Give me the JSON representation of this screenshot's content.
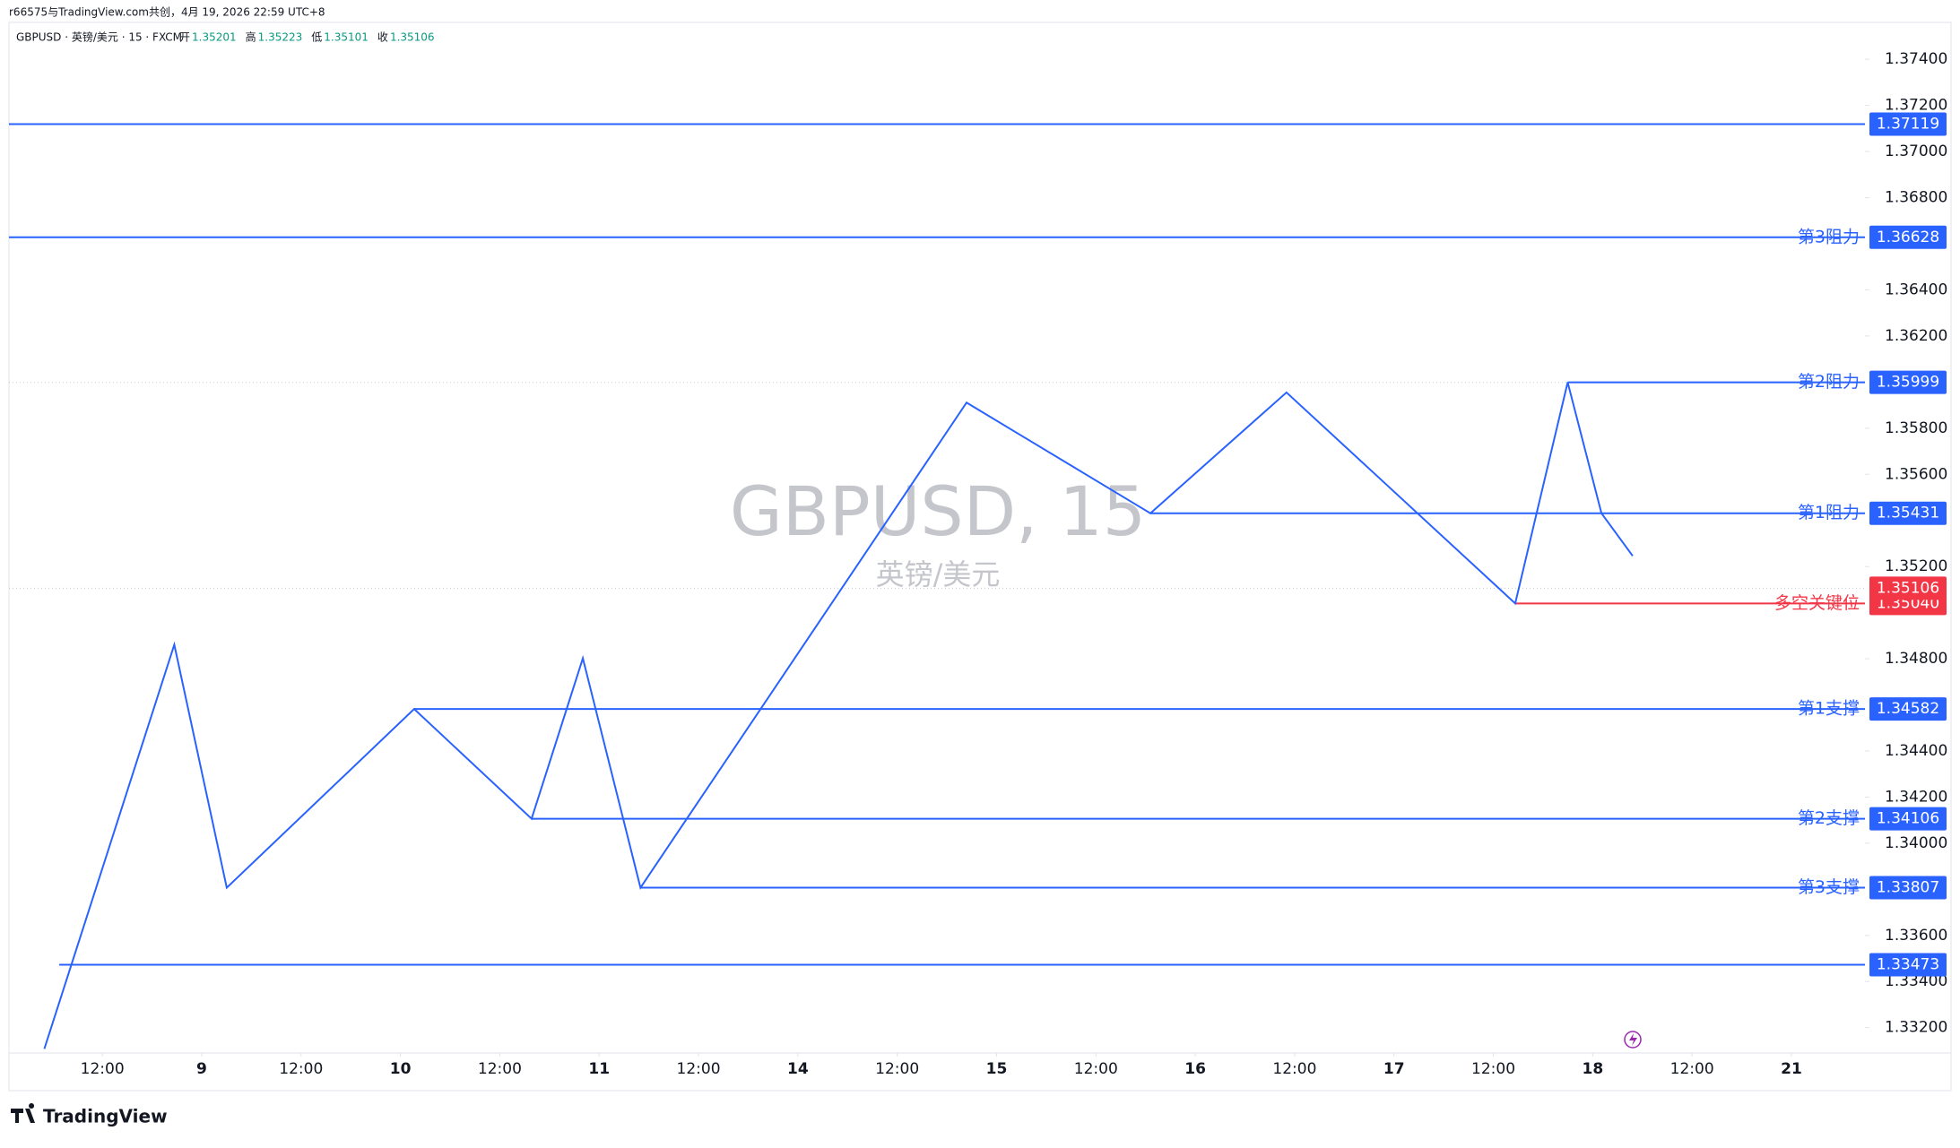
{
  "header": {
    "credit": "r66575与TradingView.com共创，4月 19, 2026 22:59 UTC+8",
    "symbol": "GBPUSD · 英镑/美元 · 15 · FXCM",
    "ohlc": [
      {
        "label": "开",
        "value": 1.35201
      },
      {
        "label": "高",
        "value": 1.35223
      },
      {
        "label": "低",
        "value": 1.35101
      },
      {
        "label": "收",
        "value": 1.35106
      }
    ]
  },
  "chart_data": {
    "type": "line",
    "title": "GBPUSD, 15",
    "subtitle": "英镑/美元",
    "x": [
      0.208,
      0.862,
      1.126,
      2.069,
      2.66,
      2.918,
      3.208,
      4.849,
      5.774,
      6.459,
      7.61,
      7.874,
      8.044,
      8.201
    ],
    "values": [
      1.33108,
      1.34861,
      1.33807,
      1.34582,
      1.34106,
      1.34802,
      1.33807,
      1.35911,
      1.35431,
      1.35955,
      1.3504,
      1.35999,
      1.35431,
      1.35246
    ],
    "color": "#2962ff",
    "levels": [
      {
        "price": 1.37119,
        "start": 0.03,
        "color": "#2962ff"
      },
      {
        "name": "第3阻力",
        "price": 1.36628,
        "start": 0.03,
        "color": "#2962ff"
      },
      {
        "name": "第2阻力",
        "price": 1.35999,
        "start": 7.874,
        "color": "#2962ff"
      },
      {
        "name": "第1阻力",
        "price": 1.35431,
        "start": 5.774,
        "color": "#2962ff"
      },
      {
        "name": "多空关键位",
        "price": {
          "value": 1.3504,
          "label": "1.35040"
        },
        "start": 7.61,
        "color": "#f23645"
      },
      {
        "name": "第1支撑",
        "price": 1.34582,
        "start": 2.069,
        "color": "#2962ff"
      },
      {
        "name": "第2支撑",
        "price": 1.34106,
        "start": 2.66,
        "color": "#2962ff"
      },
      {
        "name": "第3支撑",
        "price": 1.33807,
        "start": 3.208,
        "color": "#2962ff"
      },
      {
        "price": 1.33473,
        "start": 0.283,
        "color": "#2962ff"
      }
    ],
    "last_price": {
      "value": 1.35106,
      "color": "#f23645"
    },
    "xlim": [
      0.03,
      9.37
    ],
    "ylim": [
      1.3309,
      1.3756
    ],
    "grid": false,
    "xticks": [
      {
        "value": 0.5,
        "label": "12:00"
      },
      {
        "value": 1,
        "label": "9"
      },
      {
        "value": 1.5,
        "label": "12:00"
      },
      {
        "value": 2,
        "label": "10"
      },
      {
        "value": 2.5,
        "label": "12:00"
      },
      {
        "value": 3,
        "label": "11"
      },
      {
        "value": 3.5,
        "label": "12:00"
      },
      {
        "value": 4,
        "label": "14"
      },
      {
        "value": 4.5,
        "label": "12:00"
      },
      {
        "value": 5,
        "label": "15"
      },
      {
        "value": 5.5,
        "label": "12:00"
      },
      {
        "value": 6,
        "label": "16"
      },
      {
        "value": 6.5,
        "label": "12:00"
      },
      {
        "value": 7,
        "label": "17"
      },
      {
        "value": 7.5,
        "label": "12:00"
      },
      {
        "value": 8,
        "label": "18"
      },
      {
        "value": 8.5,
        "label": "12:00"
      },
      {
        "value": 9,
        "label": "21"
      }
    ],
    "yticks": [
      {
        "value": 1.374,
        "label": "1.37400"
      },
      {
        "value": 1.372,
        "label": "1.37200"
      },
      {
        "value": 1.37,
        "label": "1.37000"
      },
      {
        "value": 1.368,
        "label": "1.36800"
      },
      {
        "value": 1.364,
        "label": "1.36400"
      },
      {
        "value": 1.362,
        "label": "1.36200"
      },
      {
        "value": 1.358,
        "label": "1.35800"
      },
      {
        "value": 1.356,
        "label": "1.35600"
      },
      {
        "value": 1.352,
        "label": "1.35200"
      },
      {
        "value": 1.348,
        "label": "1.34800"
      },
      {
        "value": 1.344,
        "label": "1.34400"
      },
      {
        "value": 1.342,
        "label": "1.34200"
      },
      {
        "value": 1.34,
        "label": "1.34000"
      },
      {
        "value": 1.336,
        "label": "1.33600"
      },
      {
        "value": 1.334,
        "label": "1.33400"
      },
      {
        "value": 1.332,
        "label": "1.33200"
      }
    ]
  },
  "footer": {
    "brand": "TradingView"
  }
}
